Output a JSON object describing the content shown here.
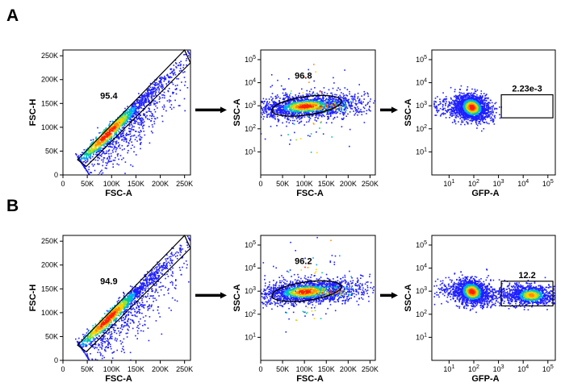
{
  "panels": [
    {
      "letter": "A"
    },
    {
      "letter": "B"
    }
  ],
  "colors": {
    "density_low": "#1f1fff",
    "density_mid": "#00c8a0",
    "density_high": "#ffd000",
    "density_peak": "#ff2000",
    "gate": "#000000",
    "arrow": "#000000"
  },
  "chart_data": [
    {
      "panel": "A",
      "type": "scatter",
      "subtype": "flow-density",
      "xlabel": "FSC-A",
      "ylabel": "FSC-H",
      "xscale": "linear",
      "yscale": "linear",
      "xlim": [
        0,
        262144
      ],
      "ylim": [
        0,
        262144
      ],
      "xticks": [
        0,
        50000,
        100000,
        150000,
        200000,
        250000
      ],
      "xtick_labels": [
        "0",
        "50K",
        "100K",
        "150K",
        "200K",
        "250K"
      ],
      "yticks": [
        0,
        50000,
        100000,
        150000,
        200000,
        250000
      ],
      "ytick_labels": [
        "0",
        "50K",
        "100K",
        "150K",
        "200K",
        "250K"
      ],
      "population": {
        "shape": "diagonal",
        "x_center": 90000,
        "y_center": 85000,
        "x_range": [
          30000,
          260000
        ]
      },
      "gate": {
        "shape": "polygon",
        "label": "95.4",
        "vertices": [
          [
            30000,
            32000
          ],
          [
            48000,
            18000
          ],
          [
            262000,
            235000
          ],
          [
            250000,
            262000
          ]
        ]
      }
    },
    {
      "panel": "A",
      "type": "scatter",
      "subtype": "flow-density",
      "xlabel": "FSC-A",
      "ylabel": "SSC-A",
      "xscale": "linear",
      "yscale": "log",
      "xlim": [
        0,
        262144
      ],
      "ylim": [
        1,
        262144
      ],
      "xticks": [
        0,
        50000,
        100000,
        150000,
        200000,
        250000
      ],
      "xtick_labels": [
        "0",
        "50K",
        "100K",
        "150K",
        "200K",
        "250K"
      ],
      "yticks": [
        10,
        100,
        1000,
        10000,
        100000
      ],
      "ytick_labels": [
        "10^1",
        "10^2",
        "10^3",
        "10^4",
        "10^5"
      ],
      "population": {
        "shape": "cloud",
        "x_center": 100000,
        "y_center": 1000,
        "x_range": [
          30000,
          260000
        ]
      },
      "gate": {
        "shape": "ellipse",
        "label": "96.8",
        "center": [
          105000,
          1000
        ],
        "x_half_width": 80000,
        "y_log_half_height": 0.4
      }
    },
    {
      "panel": "A",
      "type": "scatter",
      "subtype": "flow-density",
      "xlabel": "GFP-A",
      "ylabel": "SSC-A",
      "xscale": "log",
      "yscale": "log",
      "xlim": [
        2,
        200000
      ],
      "ylim": [
        1,
        262144
      ],
      "xticks": [
        10,
        100,
        1000,
        10000,
        100000
      ],
      "xtick_labels": [
        "10^1",
        "10^2",
        "10^3",
        "10^4",
        "10^5"
      ],
      "yticks": [
        10,
        100,
        1000,
        10000,
        100000
      ],
      "ytick_labels": [
        "10^1",
        "10^2",
        "10^3",
        "10^4",
        "10^5"
      ],
      "population": {
        "shape": "blob",
        "x_center": 80,
        "y_center": 900,
        "x_range": [
          2,
          300
        ]
      },
      "gate": {
        "shape": "rect",
        "label": "2.23e-3",
        "x_range": [
          1300,
          160000
        ],
        "y_range": [
          300,
          3000
        ]
      }
    },
    {
      "panel": "B",
      "type": "scatter",
      "subtype": "flow-density",
      "xlabel": "FSC-A",
      "ylabel": "FSC-H",
      "xscale": "linear",
      "yscale": "linear",
      "xlim": [
        0,
        262144
      ],
      "ylim": [
        0,
        262144
      ],
      "xticks": [
        0,
        50000,
        100000,
        150000,
        200000,
        250000
      ],
      "xtick_labels": [
        "0",
        "50K",
        "100K",
        "150K",
        "200K",
        "250K"
      ],
      "yticks": [
        0,
        50000,
        100000,
        150000,
        200000,
        250000
      ],
      "ytick_labels": [
        "0",
        "50K",
        "100K",
        "150K",
        "200K",
        "250K"
      ],
      "population": {
        "shape": "diagonal",
        "x_center": 90000,
        "y_center": 85000,
        "x_range": [
          30000,
          260000
        ]
      },
      "gate": {
        "shape": "polygon",
        "label": "94.9",
        "vertices": [
          [
            30000,
            32000
          ],
          [
            48000,
            18000
          ],
          [
            262000,
            235000
          ],
          [
            250000,
            262000
          ]
        ]
      }
    },
    {
      "panel": "B",
      "type": "scatter",
      "subtype": "flow-density",
      "xlabel": "FSC-A",
      "ylabel": "SSC-A",
      "xscale": "linear",
      "yscale": "log",
      "xlim": [
        0,
        262144
      ],
      "ylim": [
        1,
        262144
      ],
      "xticks": [
        0,
        50000,
        100000,
        150000,
        200000,
        250000
      ],
      "xtick_labels": [
        "0",
        "50K",
        "100K",
        "150K",
        "200K",
        "250K"
      ],
      "yticks": [
        10,
        100,
        1000,
        10000,
        100000
      ],
      "ytick_labels": [
        "10^1",
        "10^2",
        "10^3",
        "10^4",
        "10^5"
      ],
      "population": {
        "shape": "cloud",
        "x_center": 100000,
        "y_center": 1000,
        "x_range": [
          30000,
          260000
        ]
      },
      "gate": {
        "shape": "ellipse",
        "label": "96.2",
        "center": [
          105000,
          1000
        ],
        "x_half_width": 80000,
        "y_log_half_height": 0.4
      }
    },
    {
      "panel": "B",
      "type": "scatter",
      "subtype": "flow-density",
      "xlabel": "GFP-A",
      "ylabel": "SSC-A",
      "xscale": "log",
      "yscale": "log",
      "xlim": [
        2,
        200000
      ],
      "ylim": [
        1,
        262144
      ],
      "xticks": [
        10,
        100,
        1000,
        10000,
        100000
      ],
      "xtick_labels": [
        "10^1",
        "10^2",
        "10^3",
        "10^4",
        "10^5"
      ],
      "yticks": [
        10,
        100,
        1000,
        10000,
        100000
      ],
      "ytick_labels": [
        "10^1",
        "10^2",
        "10^3",
        "10^4",
        "10^5"
      ],
      "population": {
        "shape": "bimodal",
        "x_center": 80,
        "y_center": 1000,
        "x_center_2": 20000,
        "y_center_2": 700,
        "x_range": [
          2,
          150000
        ]
      },
      "gate": {
        "shape": "rect",
        "label": "12.2",
        "x_range": [
          1300,
          160000
        ],
        "y_range": [
          230,
          2700
        ]
      }
    }
  ]
}
